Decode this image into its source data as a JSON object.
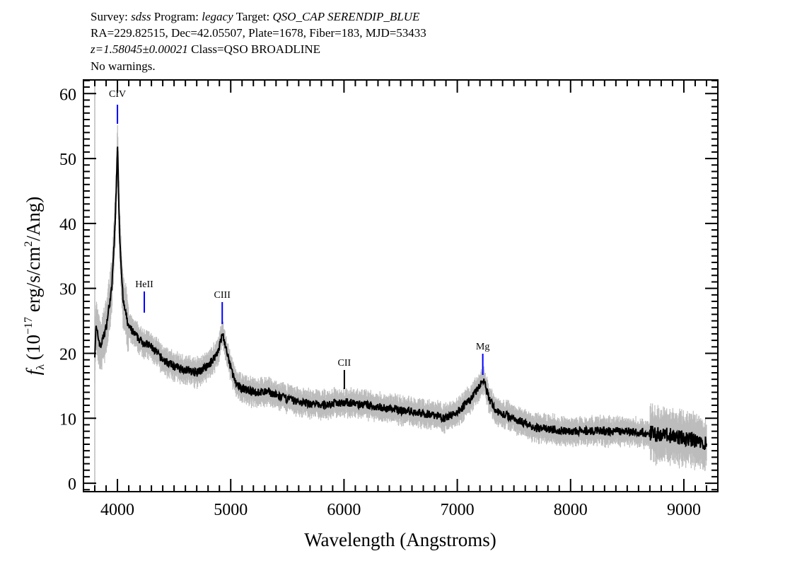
{
  "header": {
    "survey_label": "Survey:",
    "survey": "sdss",
    "program_label": "Program:",
    "program": "legacy",
    "target_label": "Target:",
    "target": "QSO_CAP SERENDIP_BLUE",
    "coords": "RA=229.82515, Dec=42.05507, Plate=1678, Fiber=183, MJD=53433",
    "redshift": "z=1.58045±0.00021",
    "class": "Class=QSO BROADLINE",
    "warnings": "No warnings."
  },
  "chart_data": {
    "type": "line",
    "title": "",
    "xlabel": "Wavelength (Angstroms)",
    "ylabel_parts": {
      "f": "f",
      "sub": "λ",
      "pre": "(10",
      "exp": "−17",
      "mid": " erg/s/cm",
      "exp2": "2",
      "post": "/Ang)"
    },
    "xlim": [
      3700,
      9300
    ],
    "ylim": [
      -1.3,
      62.1
    ],
    "xticks": [
      4000,
      5000,
      6000,
      7000,
      8000,
      9000
    ],
    "yticks": [
      0,
      10,
      20,
      30,
      40,
      50,
      60
    ],
    "grid": false,
    "colors": {
      "flux": "#000000",
      "error": "#b4b4b4",
      "line_marker": "#0000ff",
      "cii_marker": "#000000"
    },
    "series": [
      {
        "x": [
          3800,
          3810,
          3850,
          3900,
          3950,
          3980,
          4000,
          4020,
          4050,
          4100,
          4200,
          4300,
          4400,
          4500,
          4600,
          4700,
          4800,
          4880,
          4930,
          4980,
          5050,
          5200,
          5350,
          5400,
          5600,
          5800,
          6000,
          6200,
          6400,
          6600,
          6800,
          6900,
          7000,
          7100,
          7200,
          7230,
          7280,
          7350,
          7500,
          7700,
          8000,
          8500,
          8800,
          9000,
          9200
        ],
        "y": [
          20,
          24,
          21,
          24,
          30,
          40,
          52,
          38,
          28,
          24,
          22,
          21,
          19,
          18,
          17.5,
          17,
          18,
          20,
          23,
          19,
          15,
          14,
          14,
          13.5,
          12.5,
          12,
          12.5,
          12,
          11.5,
          11,
          10.5,
          10,
          11,
          12.5,
          15,
          16,
          13,
          11,
          10,
          8.5,
          8,
          8,
          7.5,
          7,
          6
        ]
      }
    ],
    "emission_lines": [
      {
        "name": "CIV",
        "wavelength": 4000,
        "color": "#0000ff"
      },
      {
        "name": "HeII",
        "wavelength": 4237,
        "color": "#0000ff"
      },
      {
        "name": "CIII",
        "wavelength": 4925,
        "color": "#0000ff"
      },
      {
        "name": "CII",
        "wavelength": 6003,
        "color": "#000000"
      },
      {
        "name": "Mg",
        "wavelength": 7225,
        "color": "#0000ff"
      }
    ]
  }
}
